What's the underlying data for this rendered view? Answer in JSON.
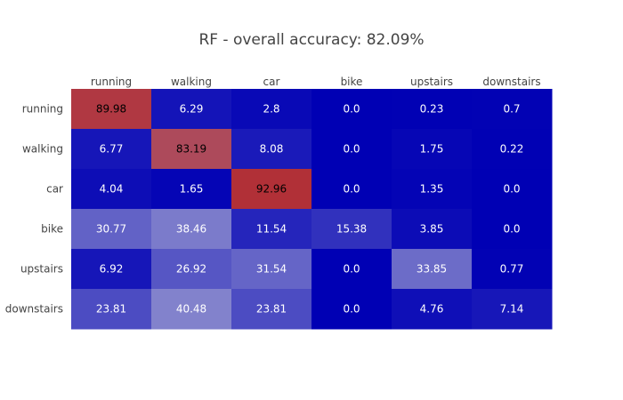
{
  "chart_data": {
    "type": "heatmap",
    "title": "RF - overall accuracy: 82.09%",
    "x_categories": [
      "running",
      "walking",
      "car",
      "bike",
      "upstairs",
      "downstairs"
    ],
    "y_categories": [
      "running",
      "walking",
      "car",
      "bike",
      "upstairs",
      "downstairs"
    ],
    "values": [
      [
        89.98,
        6.29,
        2.8,
        0.0,
        0.23,
        0.7
      ],
      [
        6.77,
        83.19,
        8.08,
        0.0,
        1.75,
        0.22
      ],
      [
        4.04,
        1.65,
        92.96,
        0.0,
        1.35,
        0.0
      ],
      [
        30.77,
        38.46,
        11.54,
        15.38,
        3.85,
        0.0
      ],
      [
        6.92,
        26.92,
        31.54,
        0.0,
        33.85,
        0.77
      ],
      [
        23.81,
        40.48,
        23.81,
        0.0,
        4.76,
        7.14
      ]
    ],
    "value_labels": [
      [
        "89.98",
        "6.29",
        "2.8",
        "0.0",
        "0.23",
        "0.7"
      ],
      [
        "6.77",
        "83.19",
        "8.08",
        "0.0",
        "1.75",
        "0.22"
      ],
      [
        "4.04",
        "1.65",
        "92.96",
        "0.0",
        "1.35",
        "0.0"
      ],
      [
        "30.77",
        "38.46",
        "11.54",
        "15.38",
        "3.85",
        "0.0"
      ],
      [
        "6.92",
        "26.92",
        "31.54",
        "0.0",
        "33.85",
        "0.77"
      ],
      [
        "23.81",
        "40.48",
        "23.81",
        "0.0",
        "4.76",
        "7.14"
      ]
    ],
    "color_range": [
      0,
      100
    ],
    "x_axis_position": "top",
    "legend": false,
    "grid": false,
    "colors": {
      "low": "#0000b4",
      "mid": "#a0a0d2",
      "high": "#b41e1e",
      "label_light": "#ffffff",
      "label_dark": "#000000"
    }
  }
}
